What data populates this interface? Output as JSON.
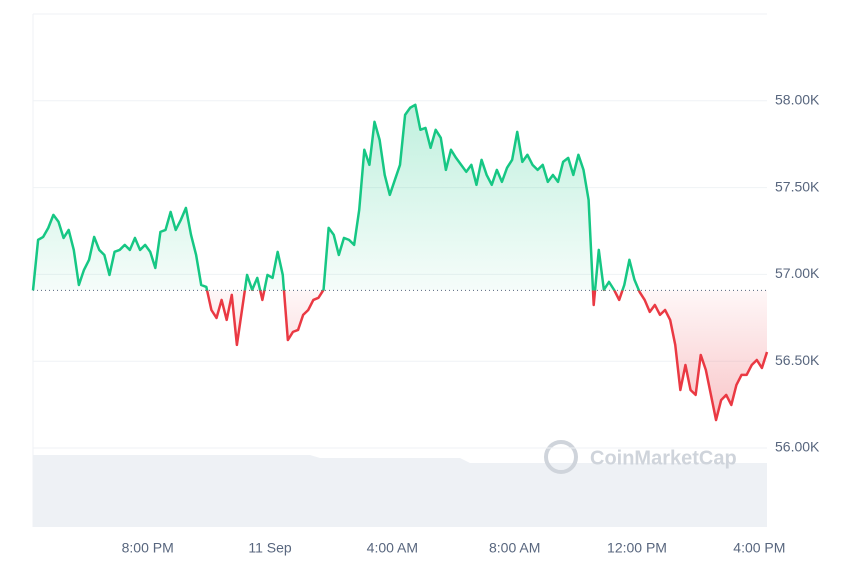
{
  "chart_data": {
    "type": "line",
    "watermark": "CoinMarketCap",
    "x": [
      975,
      985,
      995,
      1005,
      1015,
      1025,
      1035,
      1045,
      1055,
      1065,
      1075,
      1085,
      1095,
      1105,
      1115,
      1125,
      1135,
      1145,
      1155,
      1165,
      1175,
      1185,
      1195,
      1205,
      1215,
      1225,
      1235,
      1245,
      1255,
      1265,
      1275,
      1285,
      1295,
      1305,
      1315,
      1325,
      1335,
      1345,
      1355,
      1365,
      1375,
      1385,
      1395,
      1405,
      1415,
      1425,
      1435,
      1445,
      1455,
      1465,
      1475,
      1485,
      1495,
      1505,
      1515,
      1525,
      1535,
      1545,
      1555,
      1565,
      1575,
      1585,
      1595,
      1605,
      1615,
      1625,
      1635,
      1645,
      1655,
      1665,
      1675,
      1685,
      1695,
      1705,
      1715,
      1725,
      1735,
      1745,
      1755,
      1765,
      1775,
      1785,
      1795,
      1805,
      1815,
      1825,
      1835,
      1845,
      1855,
      1865,
      1875,
      1885,
      1895,
      1905,
      1915,
      1925,
      1935,
      1945,
      1955,
      1965,
      1975,
      1985,
      1995,
      2005,
      2015,
      2025,
      2035,
      2045,
      2055,
      2065,
      2075,
      2085,
      2095,
      2105,
      2115,
      2125,
      2135,
      2145,
      2155,
      2165,
      2175,
      2185,
      2195,
      2205,
      2215,
      2225,
      2235,
      2245,
      2255,
      2265,
      2275,
      2285,
      2295,
      2305,
      2315,
      2325,
      2335,
      2345,
      2355,
      2365,
      2375,
      2385,
      2395,
      2405,
      2415
    ],
    "values": [
      56908,
      57199,
      57216,
      57268,
      57343,
      57303,
      57210,
      57256,
      57141,
      56939,
      57026,
      57084,
      57216,
      57141,
      57112,
      56997,
      57130,
      57141,
      57170,
      57141,
      57210,
      57141,
      57170,
      57130,
      57037,
      57245,
      57256,
      57360,
      57256,
      57314,
      57383,
      57228,
      57112,
      56939,
      56928,
      56795,
      56749,
      56853,
      56738,
      56882,
      56594,
      56795,
      56997,
      56911,
      56980,
      56853,
      56997,
      56980,
      57130,
      56997,
      56622,
      56669,
      56680,
      56767,
      56795,
      56853,
      56865,
      56911,
      57268,
      57228,
      57112,
      57210,
      57199,
      57170,
      57372,
      57718,
      57631,
      57879,
      57775,
      57573,
      57458,
      57545,
      57631,
      57919,
      57960,
      57977,
      57833,
      57844,
      57729,
      57833,
      57787,
      57602,
      57718,
      57671,
      57631,
      57591,
      57631,
      57516,
      57660,
      57573,
      57516,
      57602,
      57533,
      57614,
      57660,
      57821,
      57648,
      57689,
      57631,
      57602,
      57631,
      57533,
      57573,
      57533,
      57648,
      57671,
      57573,
      57689,
      57602,
      57429,
      56824,
      57141,
      56911,
      56957,
      56911,
      56853,
      56939,
      57084,
      56969,
      56899,
      56853,
      56784,
      56824,
      56767,
      56795,
      56738,
      56594,
      56334,
      56478,
      56334,
      56306,
      56536,
      56450,
      56306,
      56161,
      56276,
      56306,
      56248,
      56363,
      56421,
      56421,
      56478,
      56507,
      56461,
      56553
    ],
    "baseline": 56908,
    "up_color": "#16c784",
    "down_color": "#ea3943",
    "xlim": [
      975,
      2415
    ],
    "xticks": [
      {
        "value": 1200,
        "label": "8:00 PM"
      },
      {
        "value": 1440,
        "label": "11 Sep"
      },
      {
        "value": 1680,
        "label": "4:00 AM"
      },
      {
        "value": 1920,
        "label": "8:00 AM"
      },
      {
        "value": 2160,
        "label": "12:00 PM"
      },
      {
        "value": 2400,
        "label": "4:00 PM"
      }
    ],
    "ylim": [
      55545,
      58500
    ],
    "yticks": [
      {
        "value": 56000,
        "label": "56.00K"
      },
      {
        "value": 56500,
        "label": "56.50K"
      },
      {
        "value": 57000,
        "label": "57.00K"
      },
      {
        "value": 57500,
        "label": "57.50K"
      },
      {
        "value": 58000,
        "label": "58.00K"
      }
    ],
    "grid": true
  }
}
